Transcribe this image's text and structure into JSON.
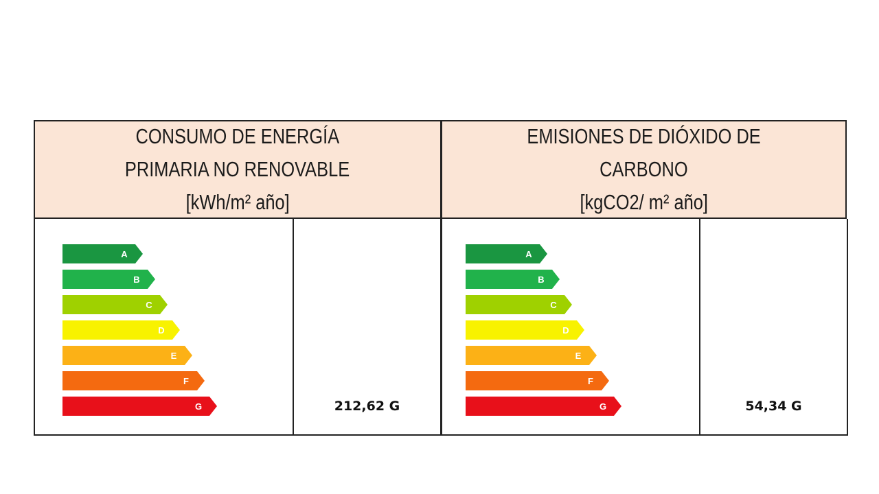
{
  "panels": [
    {
      "header_lines": [
        "CONSUMO DE ENERGÍA",
        "PRIMARIA NO RENOVABLE",
        "[kWh/m² año]"
      ],
      "value_label": "212,62 G",
      "classes": [
        {
          "letter": "A",
          "color": "#1a9641"
        },
        {
          "letter": "B",
          "color": "#21b24b"
        },
        {
          "letter": "C",
          "color": "#9fd100"
        },
        {
          "letter": "D",
          "color": "#f8f200"
        },
        {
          "letter": "E",
          "color": "#fcb116"
        },
        {
          "letter": "F",
          "color": "#f46a10"
        },
        {
          "letter": "G",
          "color": "#e8101a"
        }
      ]
    },
    {
      "header_lines": [
        "EMISIONES DE DIÓXIDO DE",
        "CARBONO",
        "[kgCO2/ m² año]"
      ],
      "value_label": "54,34 G",
      "classes": [
        {
          "letter": "A",
          "color": "#1a9641"
        },
        {
          "letter": "B",
          "color": "#21b24b"
        },
        {
          "letter": "C",
          "color": "#9fd100"
        },
        {
          "letter": "D",
          "color": "#f8f200"
        },
        {
          "letter": "E",
          "color": "#fcb116"
        },
        {
          "letter": "F",
          "color": "#f46a10"
        },
        {
          "letter": "G",
          "color": "#e8101a"
        }
      ]
    }
  ]
}
